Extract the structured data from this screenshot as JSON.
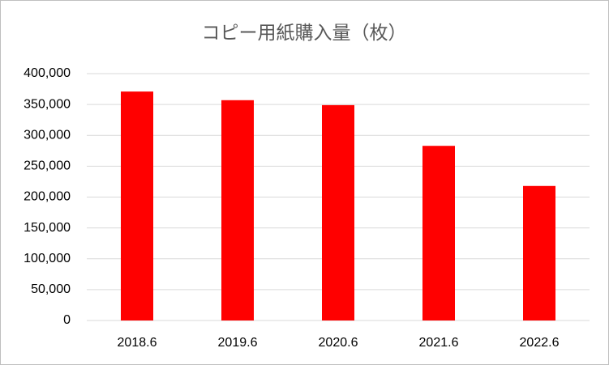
{
  "chart_data": {
    "type": "bar",
    "title": "コピー用紙購入量（枚）",
    "categories": [
      "2018.6",
      "2019.6",
      "2020.6",
      "2021.6",
      "2022.6"
    ],
    "values": [
      371000,
      357000,
      349000,
      283000,
      218000
    ],
    "color": "#ff0000",
    "ylim": [
      0,
      400000
    ],
    "yticks": [
      0,
      {
        "value": 50000,
        "label": "50,000"
      },
      {
        "value": 100000,
        "label": "100,000"
      },
      {
        "value": 150000,
        "label": "150,000"
      },
      {
        "value": 200000,
        "label": "200,000"
      },
      {
        "value": 250000,
        "label": "250,000"
      },
      {
        "value": 300000,
        "label": "300,000"
      },
      {
        "value": 350000,
        "label": "350,000"
      },
      {
        "value": 400000,
        "label": "400,000"
      }
    ],
    "grid": true
  }
}
